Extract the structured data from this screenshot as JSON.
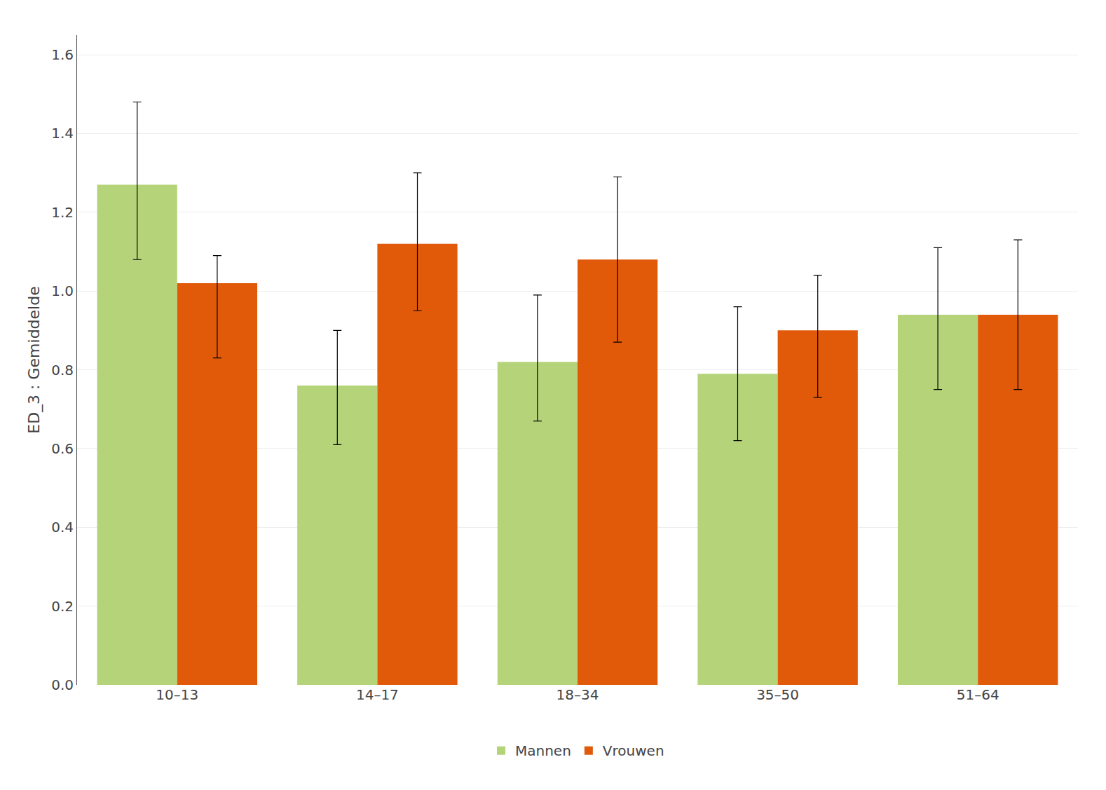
{
  "chart_data": {
    "type": "bar",
    "ylabel": "ED_3 : Gemiddelde",
    "categories": [
      "10–13",
      "14–17",
      "18–34",
      "35–50",
      "51–64"
    ],
    "series": [
      {
        "name": "Mannen",
        "color": "#b5d47a",
        "values": [
          1.27,
          0.76,
          0.82,
          0.79,
          0.94
        ],
        "err_low": [
          0.19,
          0.15,
          0.15,
          0.17,
          0.19
        ],
        "err_high": [
          0.21,
          0.14,
          0.17,
          0.17,
          0.17
        ]
      },
      {
        "name": "Vrouwen",
        "color": "#e05a0a",
        "values": [
          1.02,
          1.12,
          1.08,
          0.9,
          0.94
        ],
        "err_low": [
          0.19,
          0.17,
          0.21,
          0.17,
          0.19
        ],
        "err_high": [
          0.07,
          0.18,
          0.21,
          0.14,
          0.19
        ]
      }
    ],
    "ylim": [
      0.0,
      1.65
    ],
    "yticks": [
      {
        "value": 0.0,
        "label": "0.0"
      },
      0.2,
      0.4,
      0.6,
      0.8,
      {
        "value": 1.0,
        "label": "1.0"
      },
      1.2,
      1.4,
      1.6
    ],
    "grid": true,
    "legend": "bottom"
  }
}
